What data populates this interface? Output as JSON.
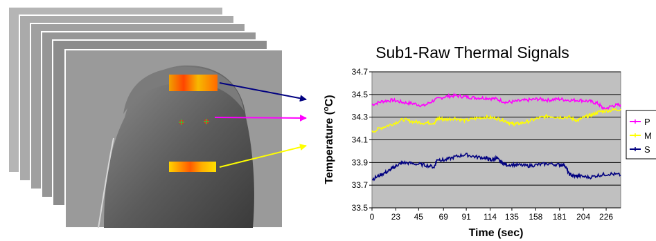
{
  "colors": {
    "plot_bg": "#c0c0c0",
    "periorbital": "#ff00ff",
    "maxillary": "#ffff00",
    "supraorbital": "#000080"
  },
  "chart_data": {
    "type": "line",
    "title": "Sub1-Raw Thermal Signals",
    "xlabel": "Time (sec)",
    "ylabel_parts": [
      "Temperature (",
      "o",
      "C)"
    ],
    "xlim": [
      0,
      240
    ],
    "ylim": [
      33.5,
      34.7
    ],
    "x_ticks": [
      "0",
      "23",
      "45",
      "69",
      "91",
      "114",
      "135",
      "158",
      "181",
      "204",
      "226"
    ],
    "y_ticks": [
      "33.5",
      "33.7",
      "33.9",
      "34.1",
      "34.3",
      "34.5",
      "34.7"
    ],
    "grid": true,
    "legend_position": "right",
    "series": [
      {
        "name": "P",
        "color": "#ff00ff",
        "x": [
          0,
          10,
          20,
          30,
          40,
          50,
          60,
          70,
          80,
          90,
          100,
          110,
          120,
          130,
          140,
          150,
          160,
          170,
          180,
          190,
          200,
          210,
          218,
          224,
          232,
          240
        ],
        "y": [
          34.41,
          34.44,
          34.45,
          34.43,
          34.42,
          34.4,
          34.45,
          34.48,
          34.49,
          34.48,
          34.47,
          34.47,
          34.46,
          34.43,
          34.44,
          34.45,
          34.46,
          34.45,
          34.46,
          34.45,
          34.45,
          34.44,
          34.42,
          34.37,
          34.4,
          34.41
        ]
      },
      {
        "name": "M",
        "color": "#ffff00",
        "x": [
          0,
          10,
          20,
          30,
          40,
          50,
          60,
          64,
          70,
          80,
          90,
          100,
          110,
          120,
          128,
          135,
          140,
          150,
          160,
          170,
          180,
          190,
          198,
          205,
          212,
          220,
          230,
          240
        ],
        "y": [
          34.17,
          34.21,
          34.24,
          34.28,
          34.26,
          34.25,
          34.25,
          34.29,
          34.28,
          34.29,
          34.27,
          34.29,
          34.3,
          34.29,
          34.27,
          34.24,
          34.24,
          34.26,
          34.29,
          34.31,
          34.3,
          34.3,
          34.27,
          34.3,
          34.32,
          34.35,
          34.36,
          34.37
        ]
      },
      {
        "name": "S",
        "color": "#000080",
        "x": [
          0,
          8,
          15,
          20,
          25,
          30,
          40,
          50,
          60,
          63,
          70,
          80,
          90,
          100,
          110,
          115,
          120,
          125,
          130,
          140,
          150,
          160,
          170,
          180,
          186,
          190,
          195,
          200,
          210,
          220,
          230,
          240
        ],
        "y": [
          33.75,
          33.79,
          33.82,
          33.85,
          33.88,
          33.9,
          33.89,
          33.88,
          33.86,
          33.93,
          33.92,
          33.95,
          33.97,
          33.95,
          33.94,
          33.92,
          33.94,
          33.9,
          33.88,
          33.88,
          33.87,
          33.88,
          33.89,
          33.88,
          33.88,
          33.8,
          33.78,
          33.78,
          33.77,
          33.79,
          33.8,
          33.79
        ]
      }
    ]
  }
}
